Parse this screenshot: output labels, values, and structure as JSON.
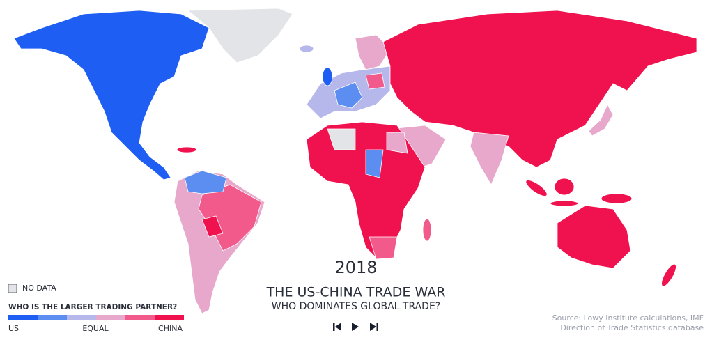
{
  "year": "2018",
  "title": "THE US-CHINA TRADE WAR",
  "subtitle": "WHO DOMINATES GLOBAL TRADE?",
  "legend": {
    "no_data": "NO DATA",
    "heading": "WHO IS THE LARGER TRADING PARTNER?",
    "scale_labels": [
      "US",
      "EQUAL",
      "CHINA"
    ]
  },
  "source": [
    "Source: Lowy Institute calculations, IMF",
    "Direction of Trade Statistics database"
  ]
}
